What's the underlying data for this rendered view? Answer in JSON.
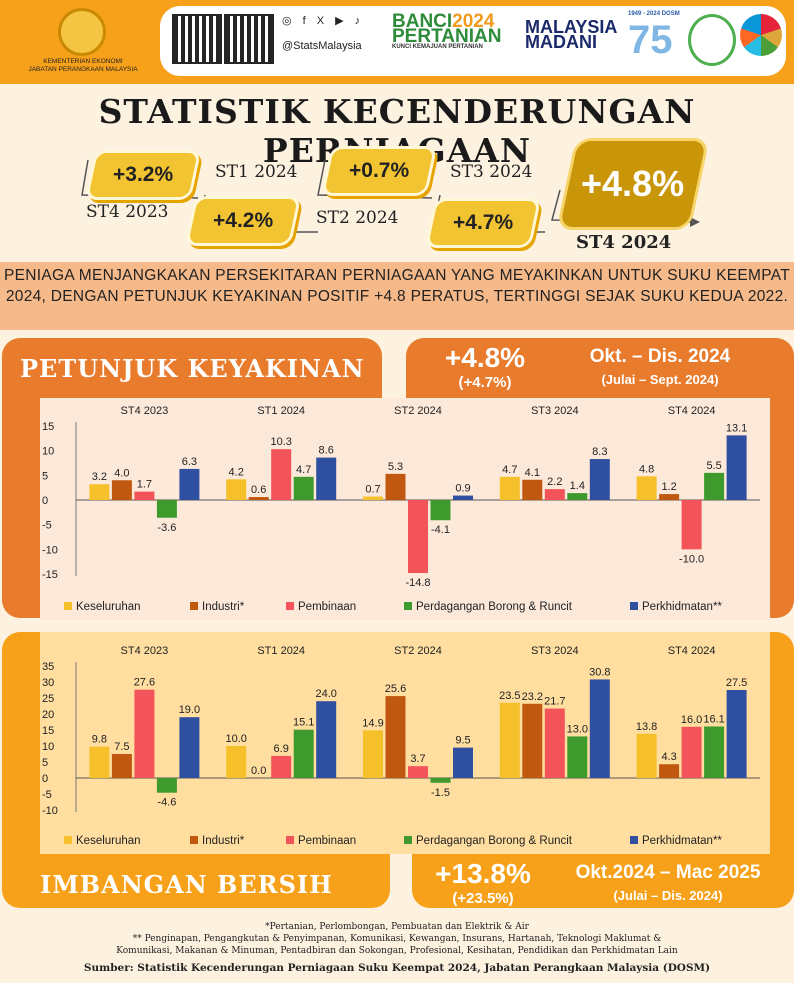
{
  "header": {
    "ministry_line1": "KEMENTERIAN EKONOMI",
    "ministry_line2": "JABATAN PERANGKAAN MALAYSIA",
    "social_icons": "◎ f X ▶ ♪",
    "handle": "@StatsMalaysia",
    "banci_line1": "BANCI",
    "banci_year": "2024",
    "banci_line2": "PERTANIAN",
    "banci_sub": "KUNCI KEMAJUAN PERTANIAN",
    "madani_line1": "MALAYSIA",
    "madani_line2": "MADANI",
    "dosm_years": "1949 - 2024 DOSM",
    "dosm_75": "75"
  },
  "title": "STATISTIK KECENDERUNGAN PERNIAGAAN",
  "flow": {
    "q1": "ST4 2023",
    "v1": "+3.2%",
    "q2": "ST1 2024",
    "v2": "+4.2%",
    "q3": "ST2 2024",
    "v3": "+0.7%",
    "q4": "ST3 2024",
    "v4": "+4.7%",
    "q5": "ST4 2024",
    "v5": "+4.8%"
  },
  "banner": "PENIAGA MENJANGKAKAN PERSEKITARAN PERNIAGAAN YANG MEYAKINKAN UNTUK SUKU KEEMPAT 2024, DENGAN PETUNJUK KEYAKINAN POSITIF +4.8 PERATUS, TERTINGGI SEJAK SUKU KEDUA 2022.",
  "confidence": {
    "heading": "PETUNJUK KEYAKINAN",
    "value": "+4.8%",
    "prev": "(+4.7%)",
    "period": "Okt. – Dis. 2024",
    "prev_period": "(Julai – Sept. 2024)"
  },
  "balance": {
    "heading": "IMBANGAN BERSIH",
    "value": "+13.8%",
    "prev": "(+23.5%)",
    "period": "Okt.2024 – Mac 2025",
    "prev_period": "(Julai – Dis. 2024)"
  },
  "colors": {
    "Keseluruhan": "#f5c02a",
    "Industri*": "#c0590f",
    "Pembinaan": "#f2545a",
    "Perdagangan Borong & Runcit": "#3f9a2e",
    "Perkhidmatan**": "#2f4fa0"
  },
  "chart_data": [
    {
      "type": "bar",
      "title": "Petunjuk Keyakinan",
      "categories": [
        "ST4 2023",
        "ST1 2024",
        "ST2 2024",
        "ST3 2024",
        "ST4 2024"
      ],
      "ylim": [
        -15,
        15
      ],
      "yticks": [
        15,
        10,
        5,
        0,
        -5,
        -10,
        -15
      ],
      "series": [
        {
          "name": "Keseluruhan",
          "values": [
            3.2,
            4.2,
            0.7,
            4.7,
            4.8
          ]
        },
        {
          "name": "Industri*",
          "values": [
            4.0,
            0.6,
            5.3,
            4.1,
            1.2
          ]
        },
        {
          "name": "Pembinaan",
          "values": [
            1.7,
            10.3,
            -14.8,
            2.2,
            -10.0
          ]
        },
        {
          "name": "Perdagangan Borong & Runcit",
          "values": [
            -3.6,
            4.7,
            -4.1,
            1.4,
            5.5
          ]
        },
        {
          "name": "Perkhidmatan**",
          "values": [
            6.3,
            8.6,
            0.9,
            8.3,
            13.1
          ]
        }
      ]
    },
    {
      "type": "bar",
      "title": "Imbangan Bersih",
      "categories": [
        "ST4 2023",
        "ST1 2024",
        "ST2 2024",
        "ST3 2024",
        "ST4 2024"
      ],
      "ylim": [
        -10,
        35
      ],
      "yticks": [
        35,
        30,
        25,
        20,
        15,
        10,
        5,
        0,
        -5,
        -10
      ],
      "series": [
        {
          "name": "Keseluruhan",
          "values": [
            9.8,
            10.0,
            14.9,
            23.5,
            13.8
          ]
        },
        {
          "name": "Industri*",
          "values": [
            7.5,
            0.0,
            25.6,
            23.2,
            4.3
          ]
        },
        {
          "name": "Pembinaan",
          "values": [
            27.6,
            6.9,
            3.7,
            21.7,
            16.0
          ]
        },
        {
          "name": "Perdagangan Borong & Runcit",
          "values": [
            -4.6,
            15.1,
            -1.5,
            13.0,
            16.1
          ]
        },
        {
          "name": "Perkhidmatan**",
          "values": [
            19.0,
            24.0,
            9.5,
            30.8,
            27.5
          ]
        }
      ]
    }
  ],
  "footnotes": {
    "f1": "*Pertanian, Perlombongan, Pembuatan dan Elektrik & Air",
    "f2": "** Penginapan, Pengangkutan & Penyimpanan, Komunikasi, Kewangan, Insurans, Hartanah, Teknologi Maklumat &",
    "f3": "Komunikasi, Makanan & Minuman, Pentadbiran dan Sokongan, Profesional, Kesihatan, Pendidikan dan Perkhidmatan Lain",
    "source": "Sumber: Statistik Kecenderungan Perniagaan Suku Keempat 2024, Jabatan Perangkaan Malaysia (DOSM)"
  }
}
